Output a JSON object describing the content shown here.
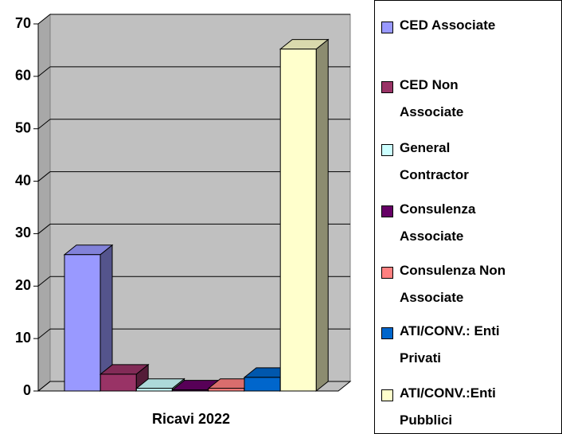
{
  "chart_data": {
    "type": "bar3d",
    "categories": [
      "Ricavi 2022"
    ],
    "series": [
      {
        "name": "CED Associate",
        "color": "#9999ff",
        "values": [
          26
        ]
      },
      {
        "name": "CED Non Associate",
        "color": "#993366",
        "values": [
          3.2
        ]
      },
      {
        "name": "General Contractor",
        "color": "#ccffff",
        "values": [
          0.5
        ]
      },
      {
        "name": "Consulenza Associate",
        "color": "#660066",
        "values": [
          0.2
        ]
      },
      {
        "name": "Consulenza Non Associate",
        "color": "#ff8080",
        "values": [
          0.5
        ]
      },
      {
        "name": "ATI/CONV.: Enti Privati",
        "color": "#0066cc",
        "values": [
          2.6
        ]
      },
      {
        "name": "ATI/CONV.:Enti Pubblici",
        "color": "#ffffcc",
        "values": [
          65.2
        ]
      }
    ],
    "ylim": [
      0,
      70
    ],
    "yticks": [
      0,
      10,
      20,
      30,
      40,
      50,
      60,
      70
    ],
    "grid": true,
    "legend": "right"
  }
}
